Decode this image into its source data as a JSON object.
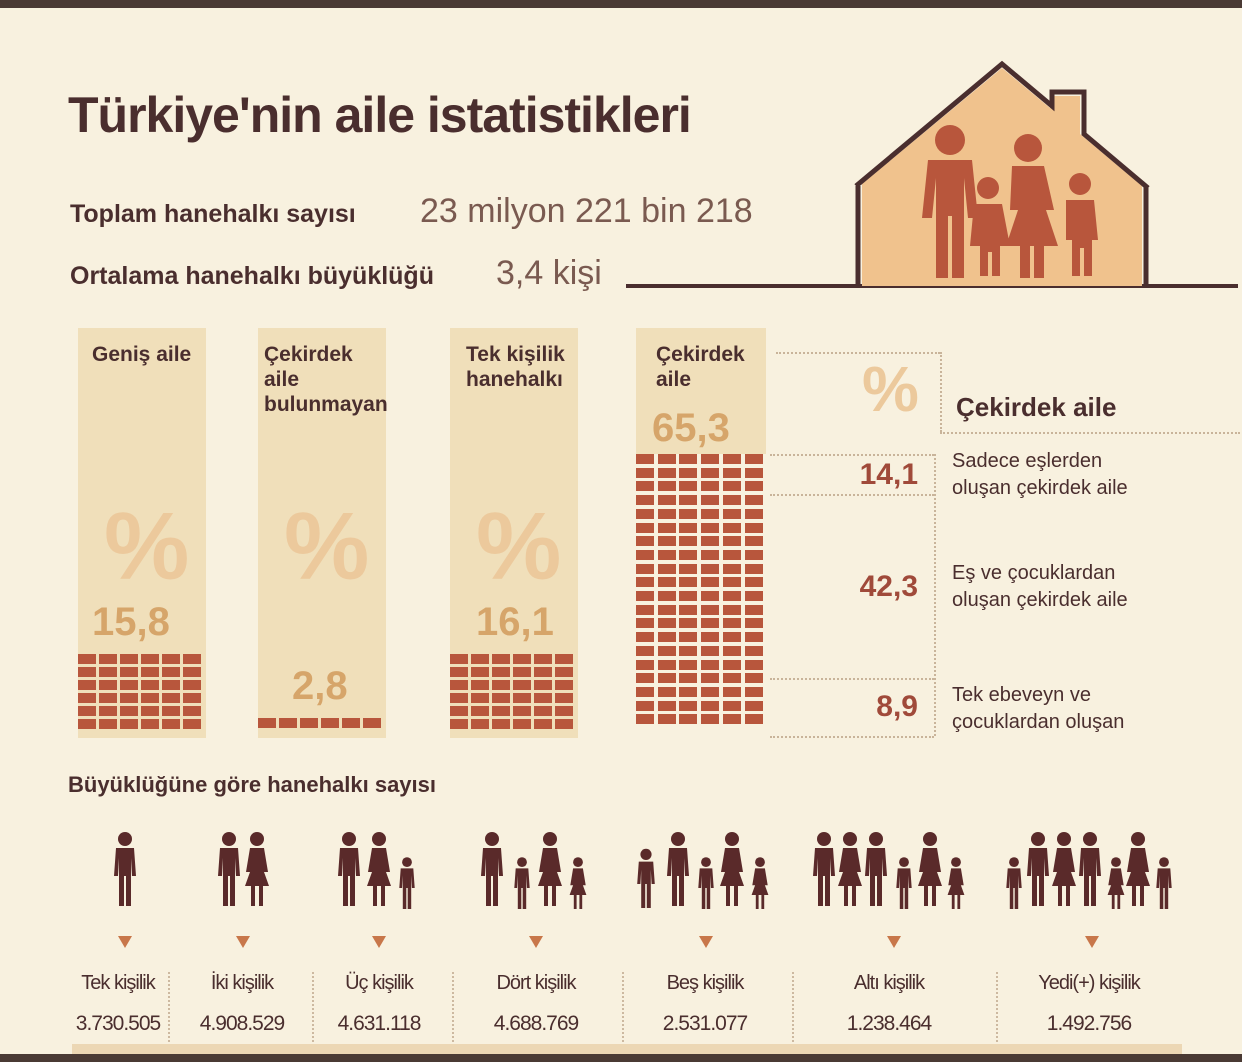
{
  "title": "Türkiye'nin aile istatistikleri",
  "stats": [
    {
      "label": "Toplam hanehalkı sayısı",
      "value": "23 milyon 221 bin 218"
    },
    {
      "label": "Ortalama hanehalkı büyüklüğü",
      "value": "3,4 kişi"
    }
  ],
  "percent_sign": "%",
  "colors": {
    "background": "#f8f1df",
    "dark_text": "#4a2e2e",
    "accent_brick": "#b8563c",
    "light_column": "#f0dfba",
    "house_fill": "#f0c28d",
    "family_figure": "#b8563c"
  },
  "family_types": [
    {
      "label_lines": [
        "Geniş aile"
      ],
      "percent": "15,8"
    },
    {
      "label_lines": [
        "Çekirdek",
        "aile",
        "bulunmayan"
      ],
      "percent": "2,8"
    },
    {
      "label_lines": [
        "Tek kişilik",
        "hanehalkı"
      ],
      "percent": "16,1"
    },
    {
      "label_lines": [
        "Çekirdek",
        "aile"
      ],
      "percent": "65,3"
    }
  ],
  "cekirdek_breakdown": {
    "title": "Çekirdek aile",
    "items": [
      {
        "value": "14,1",
        "line1": "Sadece eşlerden",
        "line2": "oluşan çekirdek aile"
      },
      {
        "value": "42,3",
        "line1": "Eş ve çocuklardan",
        "line2": "oluşan çekirdek aile"
      },
      {
        "value": "8,9",
        "line1": "Tek ebeveyn ve",
        "line2": "çocuklardan oluşan"
      }
    ]
  },
  "household_section": {
    "title": "Büyüklüğüne göre hanehalkı sayısı",
    "items": [
      {
        "label": "Tek kişilik",
        "count": "3.730.505",
        "icon": "person-icon"
      },
      {
        "label": "İki kişilik",
        "count": "4.908.529",
        "icon": "person-icon"
      },
      {
        "label": "Üç kişilik",
        "count": "4.631.118",
        "icon": "person-icon"
      },
      {
        "label": "Dört kişilik",
        "count": "4.688.769",
        "icon": "person-icon"
      },
      {
        "label": "Beş kişilik",
        "count": "2.531.077",
        "icon": "person-icon"
      },
      {
        "label": "Altı kişilik",
        "count": "1.238.464",
        "icon": "person-icon"
      },
      {
        "label": "Yedi(+) kişilik",
        "count": "1.492.756",
        "icon": "person-icon"
      }
    ]
  }
}
